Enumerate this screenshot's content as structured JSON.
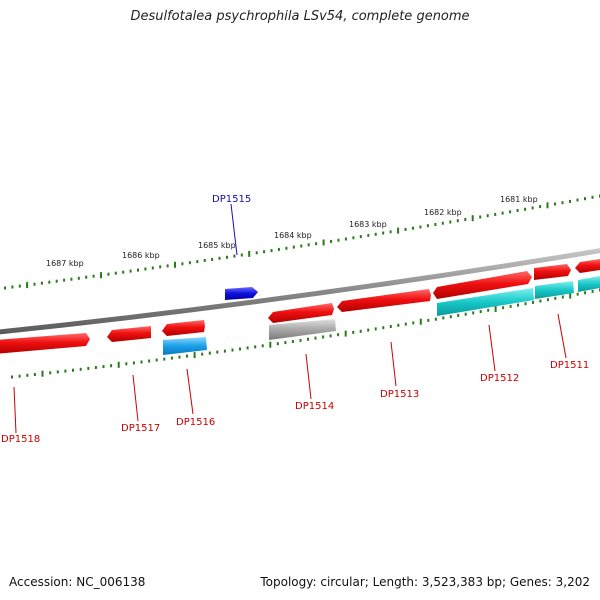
{
  "header": {
    "title": "Desulfotalea psychrophila LSv54, complete genome"
  },
  "footer": {
    "accession": "Accession: NC_006138",
    "summary": "Topology: circular; Length: 3,523,383 bp; Genes: 3,202"
  },
  "scale": {
    "labels": [
      "1681 kbp",
      "1682 kbp",
      "1683 kbp",
      "1684 kbp",
      "1685 kbp",
      "1686 kbp",
      "1687 kbp"
    ]
  },
  "genes": [
    {
      "id": "DP1511",
      "strand": "forward",
      "color": "#e8121a",
      "label_color": "#cc0000"
    },
    {
      "id": "DP1512",
      "strand": "forward",
      "color": "#e8121a",
      "label_color": "#cc0000"
    },
    {
      "id": "DP1513",
      "strand": "forward",
      "color": "#e8121a",
      "label_color": "#cc0000"
    },
    {
      "id": "DP1514",
      "strand": "forward",
      "color": "#e8121a",
      "label_color": "#cc0000"
    },
    {
      "id": "DP1515",
      "strand": "outer",
      "color": "#1010dd",
      "label_color": "#1010aa"
    },
    {
      "id": "DP1516",
      "strand": "forward",
      "color": "#e8121a",
      "label_color": "#cc0000"
    },
    {
      "id": "DP1517",
      "strand": "reverse",
      "color": "#e8121a",
      "label_color": "#cc0000"
    },
    {
      "id": "DP1518",
      "strand": "reverse",
      "color": "#e8121a",
      "label_color": "#cc0000"
    }
  ],
  "colors": {
    "backbone": "#8a8a8a",
    "tick": "#2a7a1a",
    "cds_red": "#e8121a",
    "cds_cyan": "#1fc8c8",
    "cds_blue": "#1aa0e8",
    "cds_gray": "#a8a8a8"
  }
}
